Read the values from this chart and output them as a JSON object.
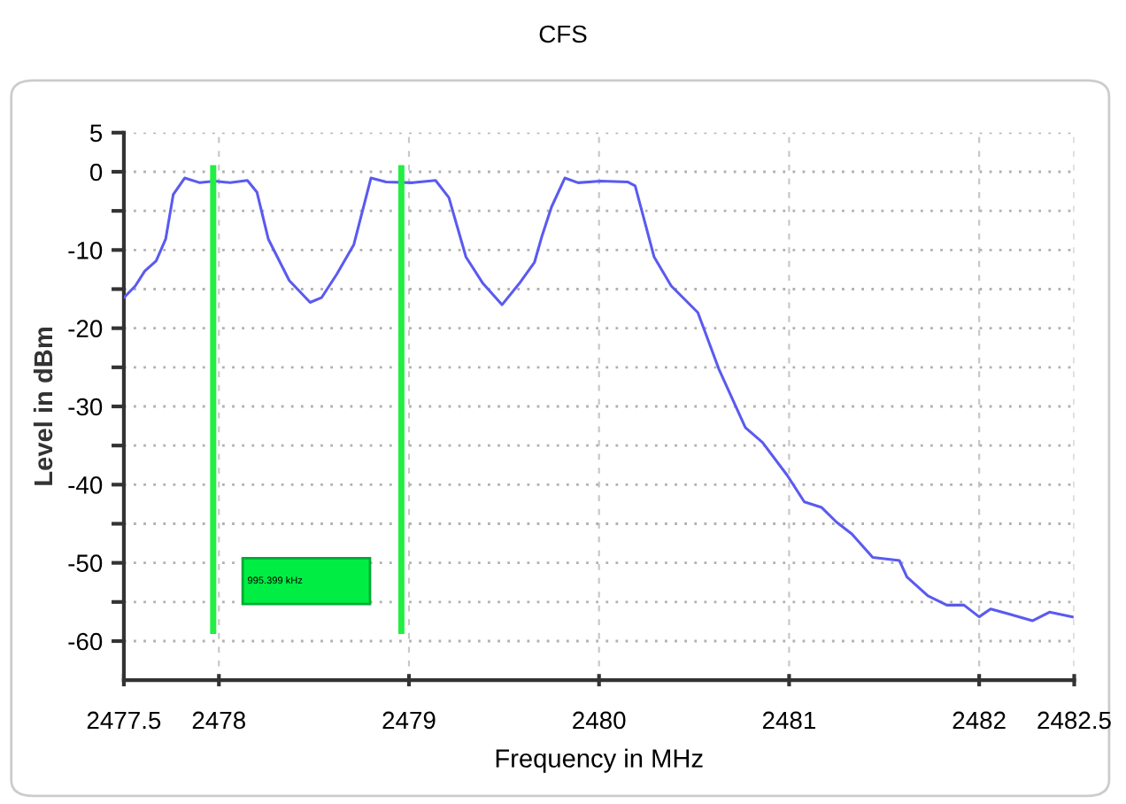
{
  "chart_data": {
    "type": "line",
    "title": "CFS",
    "xlabel": "Frequency in MHz",
    "ylabel": "Level in dBm",
    "xlim": [
      2477.5,
      2482.5
    ],
    "xticks": [
      2477.5,
      2478,
      2479,
      2480,
      2481,
      2482,
      2482.5
    ],
    "ylim": [
      -65,
      5
    ],
    "yticks": [
      5,
      0,
      {
        "value": -5,
        "label": null
      },
      -10,
      {
        "value": -15,
        "label": null
      },
      -20,
      {
        "value": -25,
        "label": null
      },
      -30,
      {
        "value": -35,
        "label": null
      },
      -40,
      {
        "value": -45,
        "label": null
      },
      -50,
      {
        "value": -55,
        "label": null
      },
      -60
    ],
    "grid": true,
    "marker": "none",
    "line_style": "solid",
    "series": [
      {
        "color": "#5a5af0",
        "x": [
          2477.5,
          2477.56,
          2477.61,
          2477.67,
          2477.72,
          2477.76,
          2477.82,
          2477.9,
          2477.98,
          2478.06,
          2478.15,
          2478.2,
          2478.26,
          2478.37,
          2478.48,
          2478.54,
          2478.62,
          2478.71,
          2478.8,
          2478.88,
          2479.02,
          2479.14,
          2479.21,
          2479.3,
          2479.39,
          2479.49,
          2479.58,
          2479.66,
          2479.7,
          2479.75,
          2479.82,
          2479.89,
          2480.01,
          2480.15,
          2480.19,
          2480.29,
          2480.38,
          2480.52,
          2480.63,
          2480.77,
          2480.86,
          2480.99,
          2481.08,
          2481.17,
          2481.25,
          2481.33,
          2481.44,
          2481.58,
          2481.62,
          2481.73,
          2481.83,
          2481.92,
          2482.0,
          2482.06,
          2482.15,
          2482.28,
          2482.37,
          2482.49
        ],
        "values": [
          -16.1,
          -14.6,
          -12.7,
          -11.4,
          -8.6,
          -2.9,
          -0.8,
          -1.4,
          -1.2,
          -1.4,
          -1.1,
          -2.6,
          -8.6,
          -13.9,
          -16.7,
          -16.1,
          -13.1,
          -9.3,
          -0.8,
          -1.3,
          -1.4,
          -1.1,
          -3.3,
          -10.9,
          -14.3,
          -17.0,
          -14.3,
          -11.6,
          -8.2,
          -4.5,
          -0.8,
          -1.4,
          -1.2,
          -1.3,
          -1.8,
          -10.9,
          -14.6,
          -18.0,
          -25.2,
          -32.7,
          -34.6,
          -38.8,
          -42.2,
          -42.9,
          -44.8,
          -46.3,
          -49.3,
          -49.7,
          -51.8,
          -54.2,
          -55.4,
          -55.4,
          -56.9,
          -55.9,
          -56.5,
          -57.4,
          -56.3,
          -56.9
        ]
      }
    ],
    "ref_lines": [
      {
        "axis": "x",
        "value": 2477.97,
        "color": "#22ee44"
      },
      {
        "axis": "x",
        "value": 2478.96,
        "color": "#22ee44"
      }
    ],
    "annotations": [
      "995.399 kHz"
    ]
  }
}
